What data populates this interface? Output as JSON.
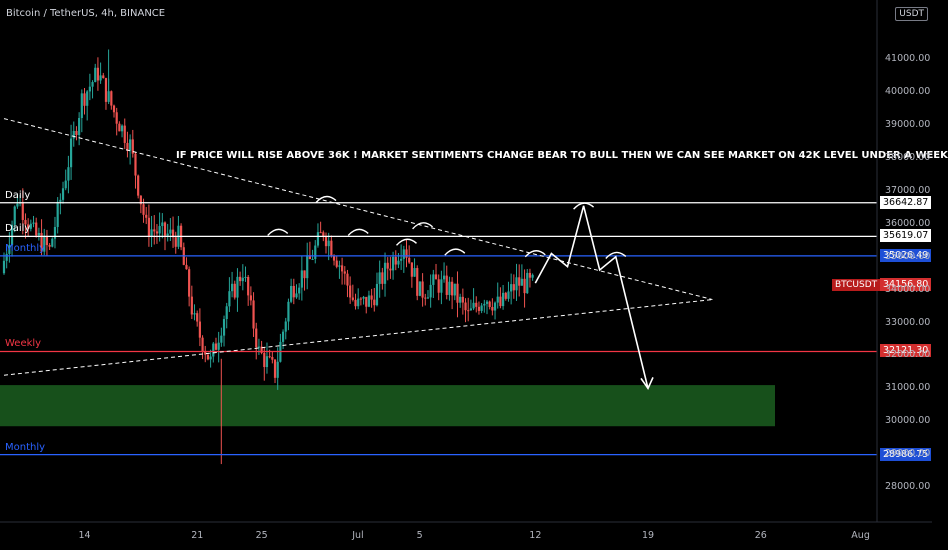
{
  "header": {
    "title": "Bitcoin / TetherUS, 4h, BINANCE",
    "currency": "USDT"
  },
  "annotation": "IF PRICE WILL RISE ABOVE 36K ! MARKET SENTIMENTS CHANGE BEAR TO BULL THEN WE CAN SEE MARKET ON 42K LEVEL UNDER A WEEK",
  "colors": {
    "background": "#000000",
    "up": "#26a69a",
    "down": "#ef5350",
    "white_line": "#ffffff",
    "blue_line": "#2962ff",
    "red_line": "#f23645",
    "zone": "#1b5e20"
  },
  "chart_data": {
    "type": "candlestick",
    "symbol": "BTCUSDT",
    "interval": "4h",
    "ylim": [
      27000,
      42500
    ],
    "y_ticks": [
      "28000.00",
      "29000.00",
      "30000.00",
      "31000.00",
      "32000.00",
      "33000.00",
      "34000.00",
      "35000.00",
      "36000.00",
      "37000.00",
      "38000.00",
      "39000.00",
      "40000.00",
      "41000.00"
    ],
    "x_ticks": [
      "14",
      "21",
      "25",
      "Jul",
      "5",
      "12",
      "19",
      "26",
      "Aug"
    ],
    "levels": [
      {
        "label": "Daily",
        "price": "36642.87",
        "value": 36642.87,
        "style": "white"
      },
      {
        "label": "Daily",
        "price": "35619.07",
        "value": 35619.07,
        "style": "white"
      },
      {
        "label": "Monthly",
        "price": "35026.49",
        "value": 35026.49,
        "style": "blue"
      },
      {
        "label": "Weekly",
        "price": "32121.30",
        "value": 32121.3,
        "style": "red"
      },
      {
        "label": "Monthly",
        "price": "28986.75",
        "value": 28986.75,
        "style": "blue"
      }
    ],
    "current_price": {
      "ticker": "BTCUSDT",
      "price": "34156.80",
      "value": 34156.8
    },
    "demand_zone": {
      "low": 29850,
      "high": 31100
    },
    "trendlines": [
      {
        "name": "descending",
        "from": {
          "date": "Jun 9",
          "price": 39200
        },
        "to": {
          "date": "Jul 23",
          "price": 33700
        }
      },
      {
        "name": "ascending",
        "from": {
          "date": "Jun 9",
          "price": 31400
        },
        "to": {
          "date": "Jul 23",
          "price": 33700
        }
      }
    ],
    "projection": [
      {
        "date": "Jul 12",
        "price": 34200
      },
      {
        "date": "Jul 13",
        "price": 35100
      },
      {
        "date": "Jul 14",
        "price": 34700
      },
      {
        "date": "Jul 15",
        "price": 36550
      },
      {
        "date": "Jul 16",
        "price": 34600
      },
      {
        "date": "Jul 17",
        "price": 35000
      },
      {
        "date": "Jul 19",
        "price": 31000
      }
    ],
    "price_path": [
      {
        "date": "Jun 9",
        "price": 34500
      },
      {
        "date": "Jun 10",
        "price": 36800
      },
      {
        "date": "Jun 11",
        "price": 35700
      },
      {
        "date": "Jun 12",
        "price": 35200
      },
      {
        "date": "Jun 13",
        "price": 37500
      },
      {
        "date": "Jun 14",
        "price": 39800
      },
      {
        "date": "Jun 15",
        "price": 40600
      },
      {
        "date": "Jun 16",
        "price": 39400
      },
      {
        "date": "Jun 17",
        "price": 38400
      },
      {
        "date": "Jun 18",
        "price": 35900
      },
      {
        "date": "Jun 19",
        "price": 35700
      },
      {
        "date": "Jun 20",
        "price": 35600
      },
      {
        "date": "Jun 21",
        "price": 33000
      },
      {
        "date": "Jun 22",
        "price": 31800
      },
      {
        "date": "Jun 23",
        "price": 33500
      },
      {
        "date": "Jun 24",
        "price": 34600
      },
      {
        "date": "Jun 25",
        "price": 32100
      },
      {
        "date": "Jun 26",
        "price": 31500
      },
      {
        "date": "Jun 27",
        "price": 34000
      },
      {
        "date": "Jun 28",
        "price": 34700
      },
      {
        "date": "Jun 29",
        "price": 35800
      },
      {
        "date": "Jun 30",
        "price": 34800
      },
      {
        "date": "Jul 1",
        "price": 33500
      },
      {
        "date": "Jul 2",
        "price": 33700
      },
      {
        "date": "Jul 3",
        "price": 34700
      },
      {
        "date": "Jul 4",
        "price": 35400
      },
      {
        "date": "Jul 5",
        "price": 33900
      },
      {
        "date": "Jul 6",
        "price": 34200
      },
      {
        "date": "Jul 7",
        "price": 34000
      },
      {
        "date": "Jul 8",
        "price": 33200
      },
      {
        "date": "Jul 9",
        "price": 33800
      },
      {
        "date": "Jul 10",
        "price": 33500
      },
      {
        "date": "Jul 11",
        "price": 34200
      },
      {
        "date": "Jul 12",
        "price": 34156.8
      }
    ]
  }
}
